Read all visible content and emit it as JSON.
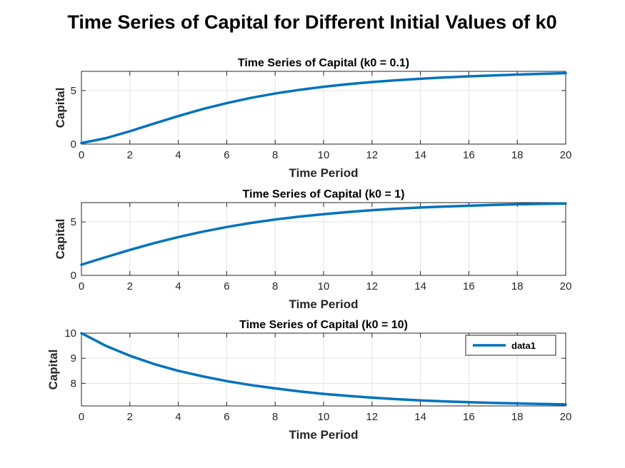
{
  "figure": {
    "title": "Time Series of Capital for Different Initial Values of k0",
    "line_color": "#0072BD"
  },
  "chart_data": [
    {
      "type": "line",
      "title": "Time Series of Capital (k0 = 0.1)",
      "xlabel": "Time Period",
      "ylabel": "Capital",
      "xlim": [
        0,
        20
      ],
      "ylim": [
        0,
        6.8
      ],
      "xticks": [
        0,
        2,
        4,
        6,
        8,
        10,
        12,
        14,
        16,
        18,
        20
      ],
      "yticks": [
        0,
        5
      ],
      "grid": true,
      "legend": null,
      "series": [
        {
          "x": [
            0,
            1,
            2,
            3,
            4,
            5,
            6,
            7,
            8,
            9,
            10,
            11,
            12,
            13,
            14,
            15,
            16,
            17,
            18,
            19,
            20
          ],
          "values": [
            0.1,
            0.55,
            1.2,
            1.92,
            2.62,
            3.27,
            3.83,
            4.32,
            4.73,
            5.07,
            5.36,
            5.6,
            5.8,
            5.97,
            6.11,
            6.23,
            6.33,
            6.42,
            6.5,
            6.57,
            6.63
          ]
        }
      ]
    },
    {
      "type": "line",
      "title": "Time Series of Capital (k0 = 1)",
      "xlabel": "Time Period",
      "ylabel": "Capital",
      "xlim": [
        0,
        20
      ],
      "ylim": [
        0,
        6.8
      ],
      "xticks": [
        0,
        2,
        4,
        6,
        8,
        10,
        12,
        14,
        16,
        18,
        20
      ],
      "yticks": [
        0,
        5
      ],
      "grid": true,
      "legend": null,
      "series": [
        {
          "x": [
            0,
            1,
            2,
            3,
            4,
            5,
            6,
            7,
            8,
            9,
            10,
            11,
            12,
            13,
            14,
            15,
            16,
            17,
            18,
            19,
            20
          ],
          "values": [
            1.0,
            1.7,
            2.38,
            3.01,
            3.58,
            4.08,
            4.52,
            4.9,
            5.22,
            5.49,
            5.72,
            5.92,
            6.09,
            6.23,
            6.34,
            6.43,
            6.51,
            6.58,
            6.64,
            6.68,
            6.72
          ]
        }
      ]
    },
    {
      "type": "line",
      "title": "Time Series of Capital (k0 = 10)",
      "xlabel": "Time Period",
      "ylabel": "Capital",
      "xlim": [
        0,
        20
      ],
      "ylim": [
        7.1,
        10
      ],
      "xticks": [
        0,
        2,
        4,
        6,
        8,
        10,
        12,
        14,
        16,
        18,
        20
      ],
      "yticks": [
        8,
        9,
        10
      ],
      "grid": true,
      "legend": "top-right",
      "series": [
        {
          "name": "data1",
          "x": [
            0,
            1,
            2,
            3,
            4,
            5,
            6,
            7,
            8,
            9,
            10,
            11,
            12,
            13,
            14,
            15,
            16,
            17,
            18,
            19,
            20
          ],
          "values": [
            10.0,
            9.5,
            9.1,
            8.77,
            8.5,
            8.28,
            8.09,
            7.93,
            7.8,
            7.68,
            7.58,
            7.5,
            7.43,
            7.37,
            7.32,
            7.28,
            7.25,
            7.22,
            7.2,
            7.18,
            7.16
          ]
        }
      ]
    }
  ]
}
